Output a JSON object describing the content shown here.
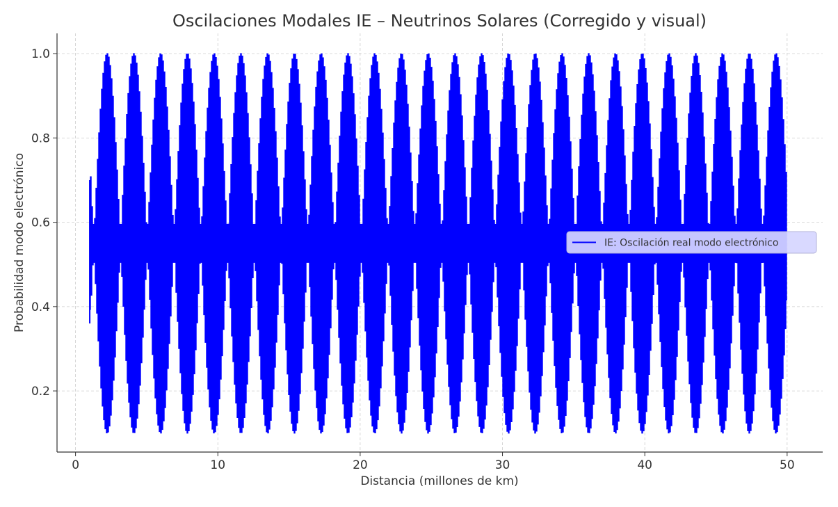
{
  "chart_data": {
    "type": "line",
    "title": "Oscilaciones Modales IE – Neutrinos Solares (Corregido y visual)",
    "xlabel": "Distancia (millones de km)",
    "ylabel": "Probabilidad modo electrónico",
    "xlim": [
      -1.3,
      52.5
    ],
    "ylim": [
      0.055,
      1.048
    ],
    "xticks": [
      0,
      10,
      20,
      30,
      40,
      50
    ],
    "xtick_labels": [
      "0",
      "10",
      "20",
      "30",
      "40",
      "50"
    ],
    "yticks": [
      0.2,
      0.4,
      0.6,
      0.8,
      1.0
    ],
    "ytick_labels": [
      "0.2",
      "0.4",
      "0.6",
      "0.8",
      "1.0"
    ],
    "grid": true,
    "legend_position": "center-right",
    "series": [
      {
        "name": "IE: Oscilación real modo electrónico",
        "color": "#0000ff",
        "x_range": [
          1,
          50
        ],
        "y_min": 0.1,
        "y_max": 1.0,
        "y_center": 0.55,
        "y_inner_band": [
          0.505,
          0.595
        ],
        "envelope_period": 1.88,
        "first_envelope_peak_x": 2.2,
        "start_spike_y_range": [
          0.36,
          0.7
        ]
      }
    ]
  }
}
